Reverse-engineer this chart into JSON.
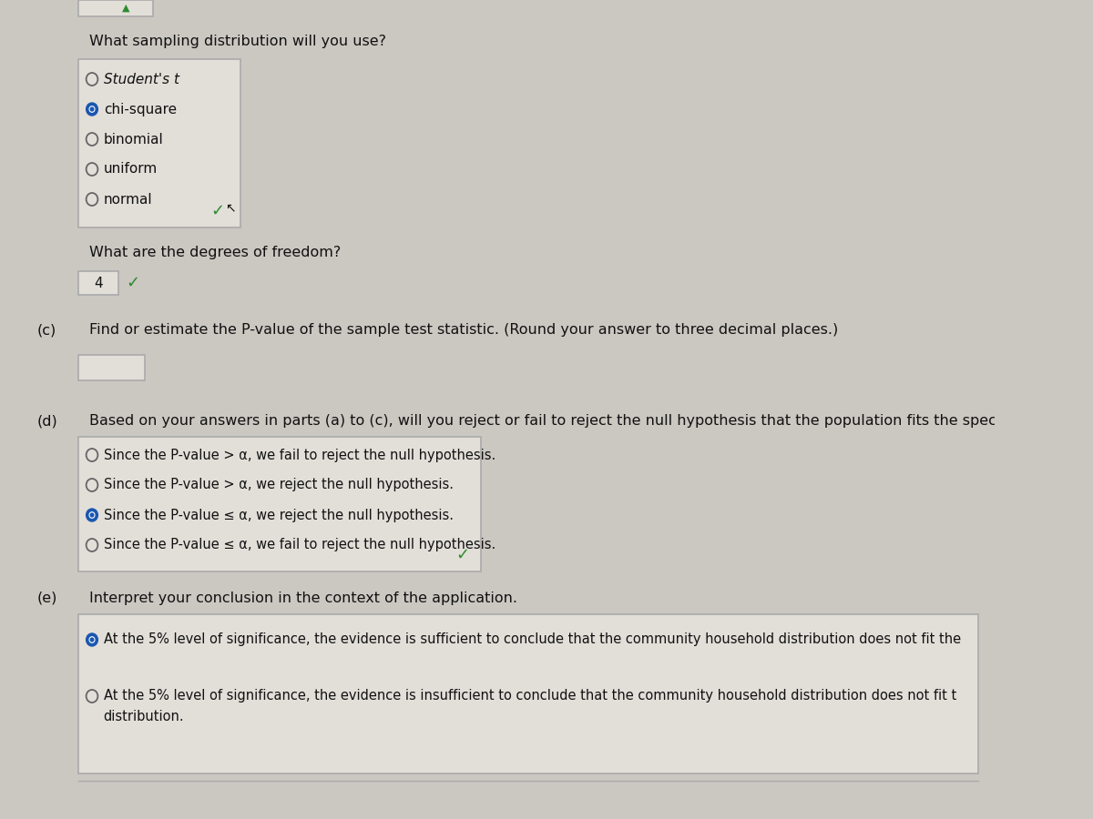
{
  "bg_color": "#cbc8c2",
  "box_bg": "#e2dfd9",
  "box_border": "#aaaaaa",
  "text_color": "#111111",
  "green_check": "#2e8b2e",
  "blue_radio": "#1a56b0",
  "radio_empty": "#666666",
  "section_a_question": "What sampling distribution will you use?",
  "radio_options_a": [
    "Student's t",
    "chi-square",
    "binomial",
    "uniform",
    "normal"
  ],
  "radio_selected_a": 1,
  "section_b_question": "What are the degrees of freedom?",
  "dof_value": "4",
  "section_c_label": "(c)",
  "section_c_question": "Find or estimate the P-value of the sample test statistic. (Round your answer to three decimal places.)",
  "section_d_label": "(d)",
  "section_d_question": "Based on your answers in parts (a) to (c), will you reject or fail to reject the null hypothesis that the population fits the specified dis",
  "radio_options_d": [
    "Since the P-value > α, we fail to reject the null hypothesis.",
    "Since the P-value > α, we reject the null hypothesis.",
    "Since the P-value ≤ α, we reject the null hypothesis.",
    "Since the P-value ≤ α, we fail to reject the null hypothesis."
  ],
  "radio_selected_d": 2,
  "section_e_label": "(e)",
  "section_e_question": "Interpret your conclusion in the context of the application.",
  "radio_options_e": [
    "At the 5% level of significance, the evidence is sufficient to conclude that the community household distribution does not fit the",
    "At the 5% level of significance, the evidence is insufficient to conclude that the community household distribution does not fit t\ndistribution."
  ],
  "radio_selected_e": 0,
  "top_box_snippet": true,
  "cursor_present": true
}
